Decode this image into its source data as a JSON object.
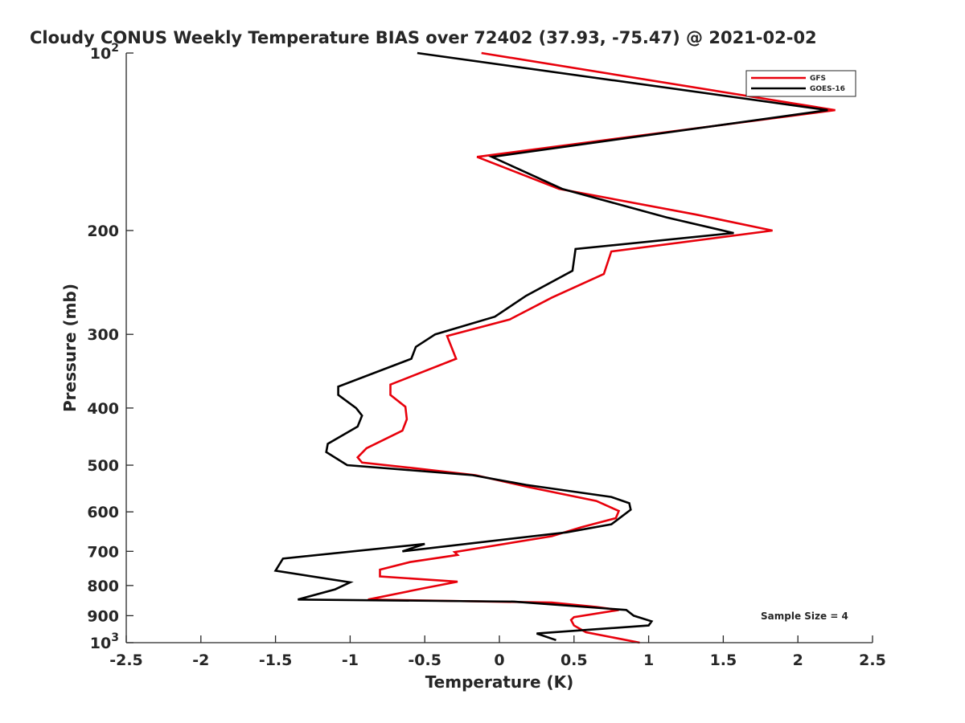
{
  "chart_data": {
    "type": "line",
    "title": "Cloudy CONUS Weekly Temperature BIAS over 72402 (37.93, -75.47) @ 2021-02-02",
    "xlabel": "Temperature (K)",
    "ylabel": "Pressure (mb)",
    "xlim": [
      -2.5,
      2.5
    ],
    "ylim": [
      1000,
      100
    ],
    "y_scale": "log",
    "y_reversed": true,
    "grid": false,
    "legend_position": "top-right",
    "x_ticks": [
      -2.5,
      -2,
      -1.5,
      -1,
      -0.5,
      0,
      0.5,
      1,
      1.5,
      2,
      2.5
    ],
    "x_tick_labels": [
      "-2.5",
      "-2",
      "-1.5",
      "-1",
      "-0.5",
      "0",
      "0.5",
      "1",
      "1.5",
      "2",
      "2.5"
    ],
    "y_ticks": [
      100,
      200,
      300,
      400,
      500,
      600,
      700,
      800,
      900,
      1000
    ],
    "y_tick_labels": [
      "10^2",
      "200",
      "300",
      "400",
      "500",
      "600",
      "700",
      "800",
      "900",
      "10^3"
    ],
    "annotation": "Sample Size = 4",
    "series": [
      {
        "name": "GFS",
        "color": "#e8000b",
        "points": [
          [
            -0.12,
            100
          ],
          [
            2.25,
            125
          ],
          [
            -0.15,
            150
          ],
          [
            0.4,
            170
          ],
          [
            1.32,
            188
          ],
          [
            1.83,
            200
          ],
          [
            0.75,
            217
          ],
          [
            0.7,
            237
          ],
          [
            0.35,
            260
          ],
          [
            0.07,
            283
          ],
          [
            -0.35,
            302
          ],
          [
            -0.29,
            330
          ],
          [
            -0.73,
            365
          ],
          [
            -0.73,
            380
          ],
          [
            -0.63,
            398
          ],
          [
            -0.62,
            418
          ],
          [
            -0.65,
            437
          ],
          [
            -0.89,
            468
          ],
          [
            -0.95,
            485
          ],
          [
            -0.92,
            495
          ],
          [
            -0.6,
            505
          ],
          [
            -0.16,
            520
          ],
          [
            0.2,
            545
          ],
          [
            0.65,
            575
          ],
          [
            0.8,
            598
          ],
          [
            0.78,
            615
          ],
          [
            0.55,
            637
          ],
          [
            0.35,
            660
          ],
          [
            -0.3,
            702
          ],
          [
            -0.28,
            710
          ],
          [
            -0.6,
            730
          ],
          [
            -0.8,
            752
          ],
          [
            -0.8,
            772
          ],
          [
            -0.28,
            788
          ],
          [
            -0.5,
            808
          ],
          [
            -0.88,
            845
          ],
          [
            0.35,
            855
          ],
          [
            0.65,
            870
          ],
          [
            0.8,
            880
          ],
          [
            0.5,
            905
          ],
          [
            0.48,
            915
          ],
          [
            0.5,
            935
          ],
          [
            0.58,
            960
          ],
          [
            0.94,
            1000
          ]
        ]
      },
      {
        "name": "GOES-16",
        "color": "#000000",
        "points": [
          [
            -0.55,
            100
          ],
          [
            2.2,
            125
          ],
          [
            -0.05,
            150
          ],
          [
            0.42,
            170
          ],
          [
            1.12,
            190
          ],
          [
            1.57,
            202
          ],
          [
            0.51,
            215
          ],
          [
            0.49,
            234
          ],
          [
            0.18,
            258
          ],
          [
            -0.03,
            280
          ],
          [
            -0.43,
            300
          ],
          [
            -0.56,
            315
          ],
          [
            -0.59,
            330
          ],
          [
            -1.08,
            368
          ],
          [
            -1.08,
            380
          ],
          [
            -0.96,
            400
          ],
          [
            -0.92,
            412
          ],
          [
            -0.95,
            430
          ],
          [
            -1.15,
            460
          ],
          [
            -1.16,
            475
          ],
          [
            -1.02,
            500
          ],
          [
            -0.18,
            520
          ],
          [
            0.18,
            540
          ],
          [
            0.75,
            566
          ],
          [
            0.87,
            580
          ],
          [
            0.88,
            595
          ],
          [
            0.75,
            630
          ],
          [
            0.45,
            650
          ],
          [
            -0.65,
            700
          ],
          [
            -0.5,
            680
          ],
          [
            -1.45,
            720
          ],
          [
            -1.5,
            755
          ],
          [
            -1,
            790
          ],
          [
            -1.1,
            812
          ],
          [
            -1.35,
            845
          ],
          [
            0.1,
            852
          ],
          [
            0.85,
            880
          ],
          [
            0.9,
            900
          ],
          [
            1.02,
            920
          ],
          [
            1.0,
            935
          ],
          [
            0.25,
            965
          ],
          [
            0.38,
            990
          ]
        ]
      }
    ]
  }
}
